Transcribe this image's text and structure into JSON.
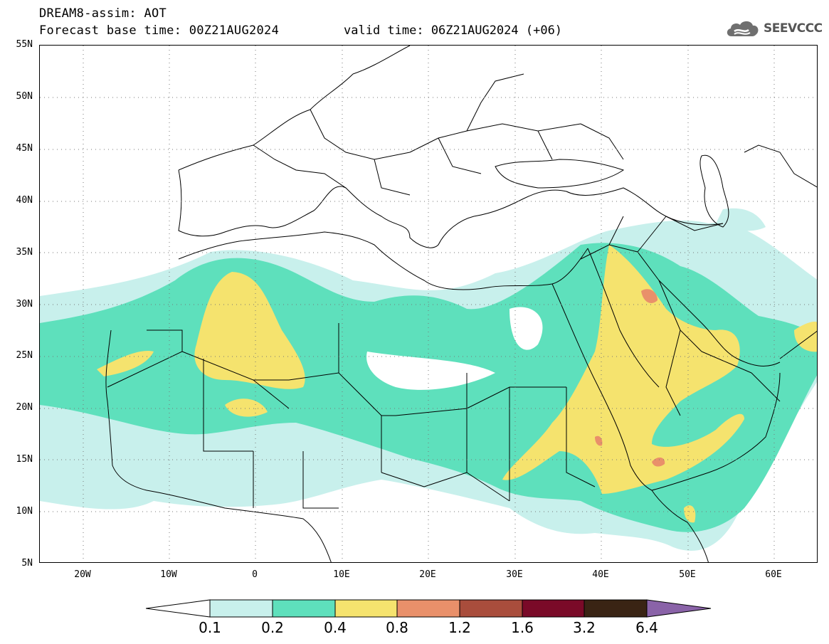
{
  "title": {
    "line1": "DREAM8-assim: AOT",
    "line2": "Forecast base time: 00Z21AUG2024",
    "valid": "valid time: 06Z21AUG2024 (+06)"
  },
  "logo": {
    "text": "SEEVCCC",
    "icon": "cloud-icon"
  },
  "map": {
    "lat_labels": [
      "55N",
      "50N",
      "45N",
      "40N",
      "35N",
      "30N",
      "25N",
      "20N",
      "15N",
      "10N",
      "5N"
    ],
    "lon_labels": [
      "20W",
      "10W",
      "0",
      "10E",
      "20E",
      "30E",
      "40E",
      "50E",
      "60E"
    ],
    "lon_range": [
      -25,
      65
    ],
    "lat_range": [
      5,
      55
    ],
    "grid": "dotted"
  },
  "colorbar": {
    "labels": [
      "0.1",
      "0.2",
      "0.4",
      "0.8",
      "1.2",
      "1.6",
      "3.2",
      "6.4"
    ],
    "colors": [
      "#c8f0ec",
      "#5ee0bc",
      "#f5e36e",
      "#e9906a",
      "#a94d3c",
      "#7a0a28",
      "#3a2414",
      "#8a63a8"
    ],
    "under_color": "#ffffff"
  }
}
